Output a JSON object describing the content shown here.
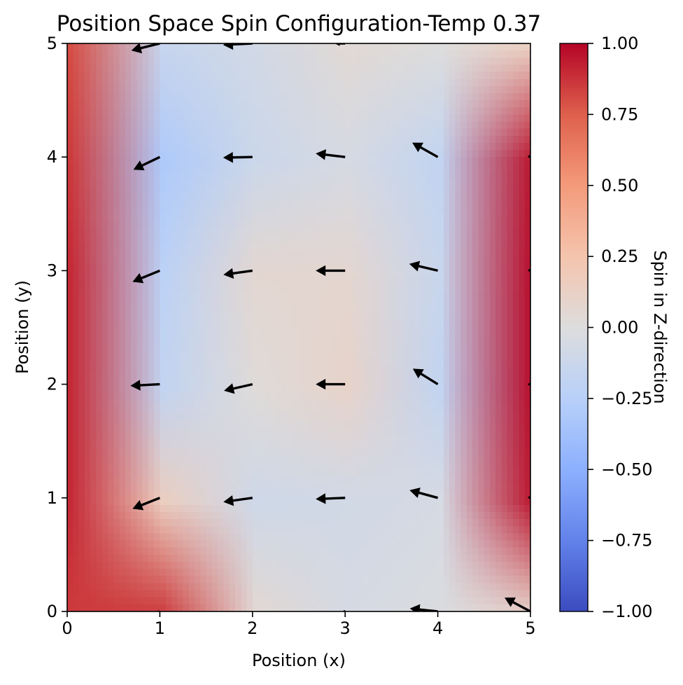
{
  "chart_data": {
    "type": "heatmap",
    "title": "Position Space Spin Configuration-Temp 0.37",
    "xlabel": "Position (x)",
    "ylabel": "Position (y)",
    "xlim": [
      0,
      5
    ],
    "ylim": [
      0,
      5
    ],
    "x_ticks": [
      "0",
      "1",
      "2",
      "3",
      "4",
      "5"
    ],
    "y_ticks": [
      "0",
      "1",
      "2",
      "3",
      "4",
      "5"
    ],
    "grid": false,
    "colormap": "coolwarm",
    "z_values": {
      "x": [
        0,
        1,
        2,
        3,
        4,
        5
      ],
      "y": [
        0,
        1,
        2,
        3,
        4,
        5
      ],
      "rows": [
        [
          0.85,
          0.85,
          0.05,
          -0.05,
          -0.02,
          0.1
        ],
        [
          0.9,
          0.15,
          -0.1,
          -0.08,
          -0.05,
          0.95
        ],
        [
          0.9,
          -0.18,
          0.02,
          0.1,
          -0.18,
          0.98
        ],
        [
          0.9,
          -0.22,
          0.06,
          0.07,
          -0.14,
          0.98
        ],
        [
          0.85,
          -0.3,
          -0.12,
          -0.05,
          -0.18,
          0.96
        ],
        [
          0.8,
          -0.15,
          -0.08,
          0.04,
          0.0,
          0.15
        ]
      ]
    },
    "vectors": [
      {
        "x": 1,
        "y": 5,
        "u": -0.97,
        "v": -0.24
      },
      {
        "x": 2,
        "y": 5,
        "u": -1.0,
        "v": -0.05
      },
      {
        "x": 3,
        "y": 5,
        "u": -0.35,
        "v": 0.0
      },
      {
        "x": 4,
        "y": 5,
        "u": 0.0,
        "v": 0.0
      },
      {
        "x": 1,
        "y": 4,
        "u": -0.9,
        "v": -0.43
      },
      {
        "x": 2,
        "y": 4,
        "u": -1.0,
        "v": -0.02
      },
      {
        "x": 3,
        "y": 4,
        "u": -1.0,
        "v": 0.12
      },
      {
        "x": 4,
        "y": 4,
        "u": -0.87,
        "v": 0.49
      },
      {
        "x": 5,
        "y": 4,
        "u": -0.1,
        "v": 0.05
      },
      {
        "x": 1,
        "y": 3,
        "u": -0.93,
        "v": -0.38
      },
      {
        "x": 2,
        "y": 3,
        "u": -0.99,
        "v": -0.14
      },
      {
        "x": 3,
        "y": 3,
        "u": -1.0,
        "v": 0.0
      },
      {
        "x": 4,
        "y": 3,
        "u": -0.97,
        "v": 0.23
      },
      {
        "x": 5,
        "y": 3,
        "u": -0.1,
        "v": 0.03
      },
      {
        "x": 1,
        "y": 2,
        "u": -1.0,
        "v": -0.05
      },
      {
        "x": 2,
        "y": 2,
        "u": -0.97,
        "v": -0.22
      },
      {
        "x": 3,
        "y": 2,
        "u": -1.0,
        "v": 0.0
      },
      {
        "x": 4,
        "y": 2,
        "u": -0.85,
        "v": 0.53
      },
      {
        "x": 5,
        "y": 2,
        "u": -0.1,
        "v": 0.0
      },
      {
        "x": 1,
        "y": 1,
        "u": -0.93,
        "v": -0.37
      },
      {
        "x": 2,
        "y": 1,
        "u": -0.99,
        "v": -0.14
      },
      {
        "x": 3,
        "y": 1,
        "u": -1.0,
        "v": -0.04
      },
      {
        "x": 4,
        "y": 1,
        "u": -0.96,
        "v": 0.26
      },
      {
        "x": 5,
        "y": 1,
        "u": -0.1,
        "v": 0.03
      },
      {
        "x": 1,
        "y": 0,
        "u": -0.15,
        "v": -0.05
      },
      {
        "x": 3,
        "y": 0,
        "u": -0.1,
        "v": 0.0
      },
      {
        "x": 4,
        "y": 0,
        "u": -0.95,
        "v": 0.1
      },
      {
        "x": 5,
        "y": 0,
        "u": -0.88,
        "v": 0.47
      }
    ],
    "colorbar": {
      "label": "Spin in Z-direction",
      "range": [
        -1.0,
        1.0
      ],
      "ticks": [
        "1.00",
        "0.75",
        "0.50",
        "0.25",
        "0.00",
        "−0.25",
        "−0.50",
        "−0.75",
        "−1.00"
      ],
      "tick_values": [
        1.0,
        0.75,
        0.5,
        0.25,
        0.0,
        -0.25,
        -0.5,
        -0.75,
        -1.0
      ]
    }
  }
}
